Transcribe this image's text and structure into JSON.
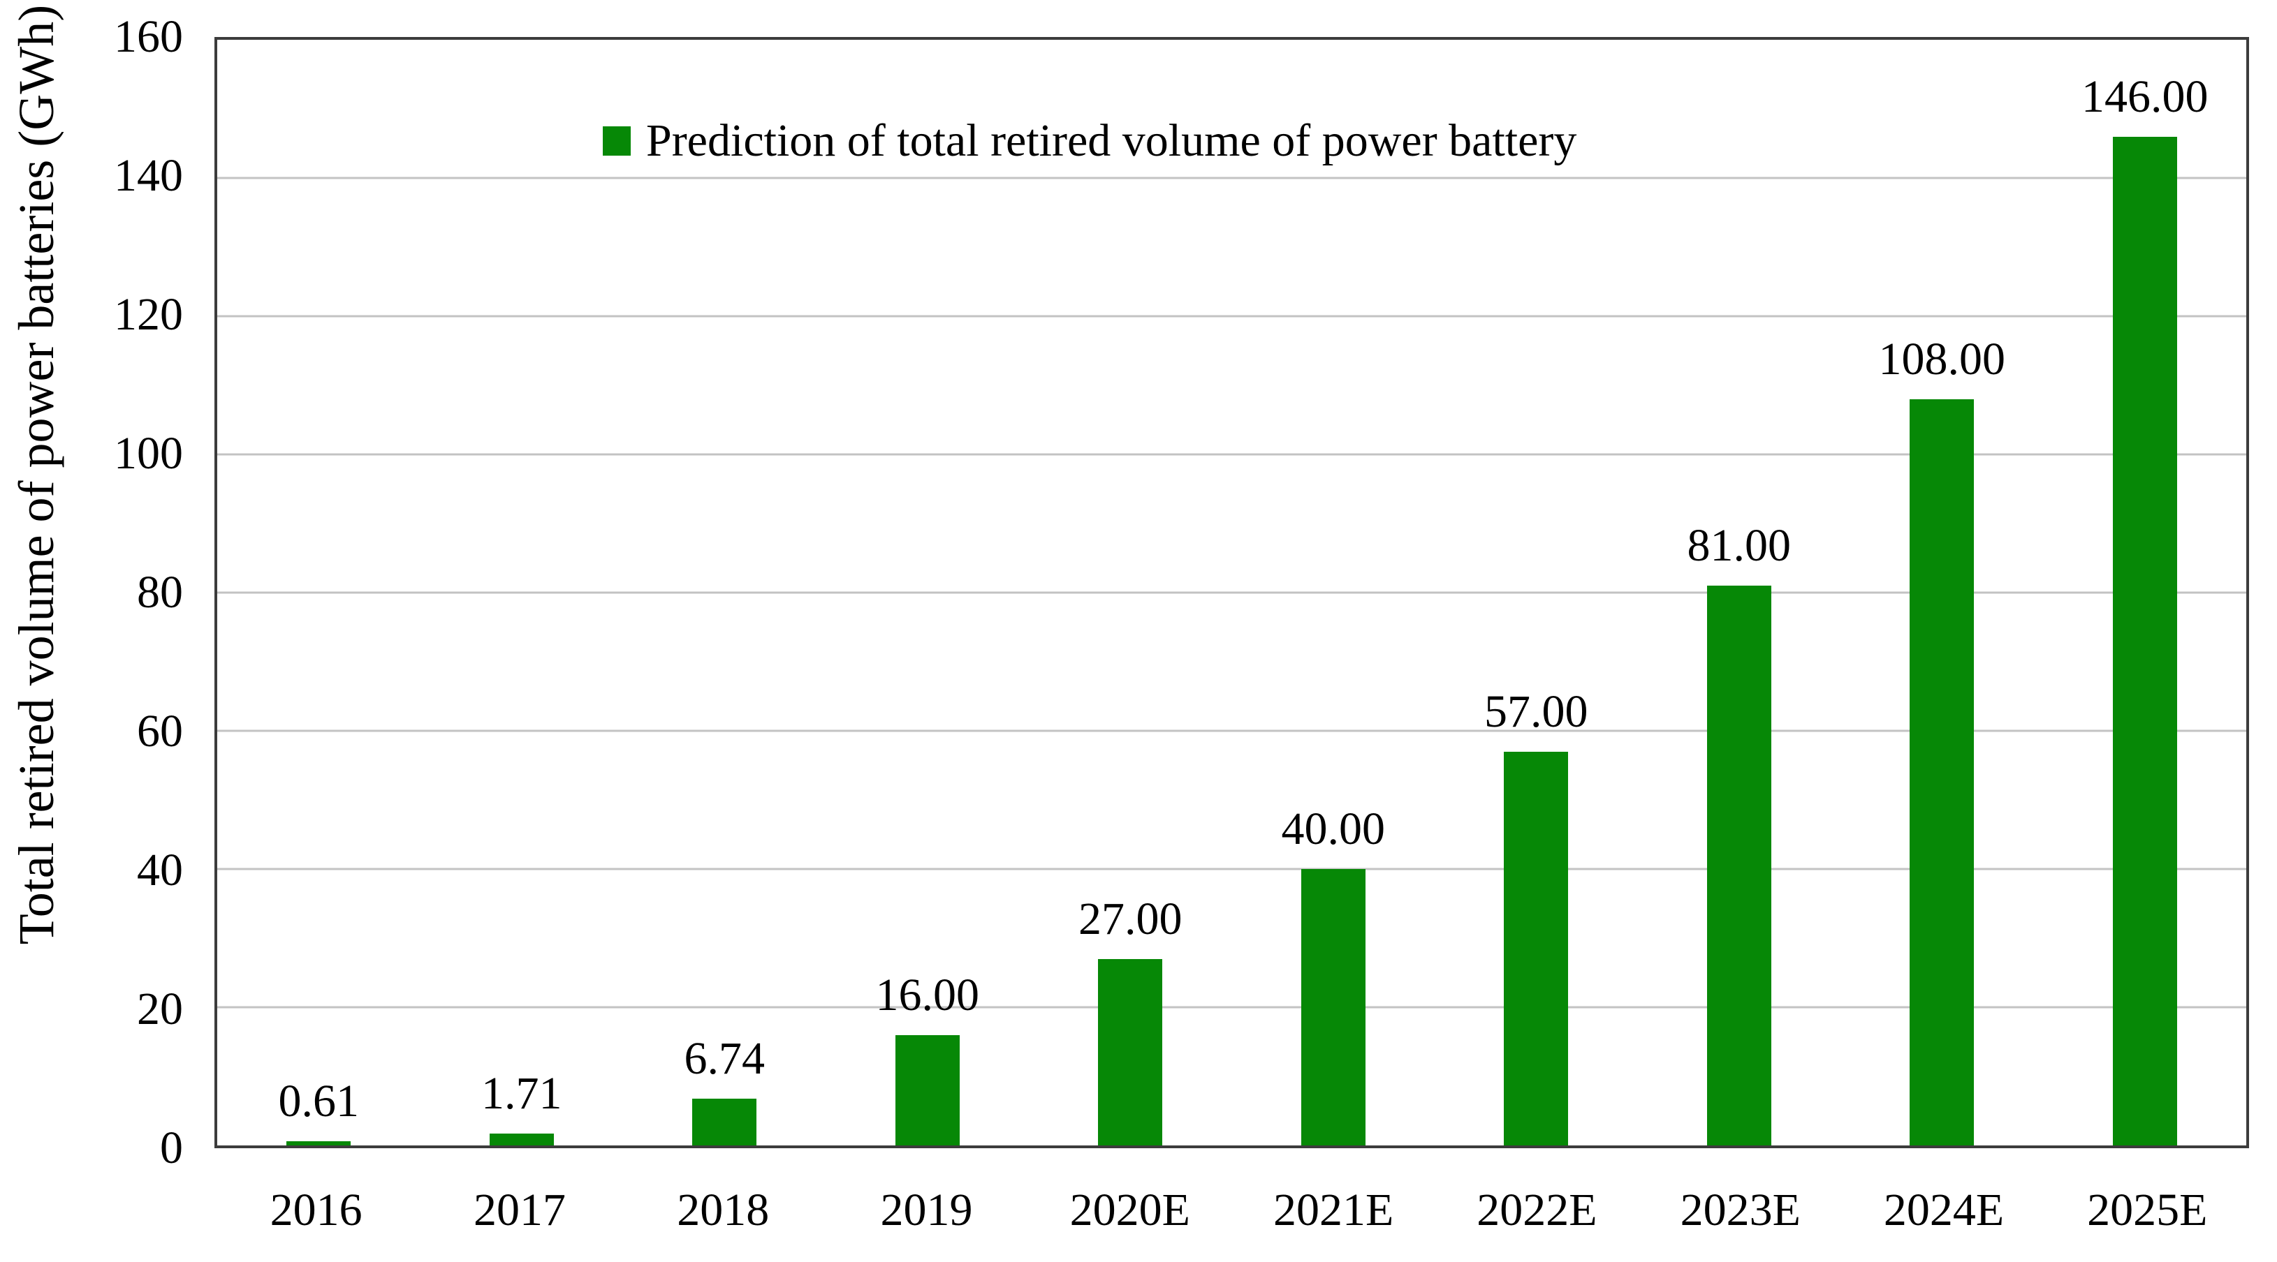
{
  "chart_data": {
    "type": "bar",
    "title": "",
    "xlabel": "",
    "ylabel": "Total retired volume of power batteries (GWh)",
    "legend_label": "Prediction of total retired volume of power battery",
    "legend_position": "top-left-inside",
    "categories": [
      "2016",
      "2017",
      "2018",
      "2019",
      "2020E",
      "2021E",
      "2022E",
      "2023E",
      "2024E",
      "2025E"
    ],
    "values": [
      0.61,
      1.71,
      6.74,
      16.0,
      27.0,
      40.0,
      57.0,
      81.0,
      108.0,
      146.0
    ],
    "value_labels": [
      "0.61",
      "1.71",
      "6.74",
      "16.00",
      "27.00",
      "40.00",
      "57.00",
      "81.00",
      "108.00",
      "146.00"
    ],
    "ylim": [
      0,
      160
    ],
    "ytick_step": 20,
    "y_ticks": [
      "0",
      "20",
      "40",
      "60",
      "80",
      "100",
      "120",
      "140",
      "160"
    ],
    "grid": "horizontal",
    "colors": {
      "bar": "#068806",
      "gridline": "#c3c3c3",
      "axis_border": "#3c3c3c",
      "text": "#000000",
      "background": "#ffffff"
    }
  }
}
